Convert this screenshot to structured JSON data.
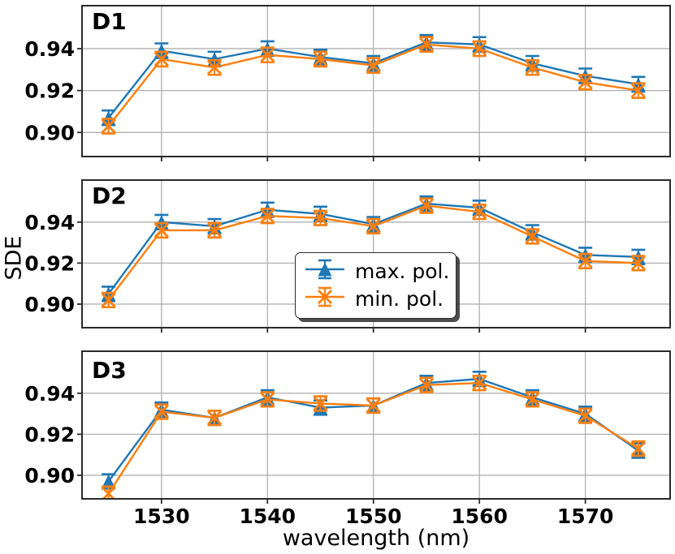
{
  "figure": {
    "xlabel": "wavelength (nm)",
    "ylabel": "SDE",
    "colors": {
      "max_pol": "#1f77b4",
      "min_pol": "#ff7f0e",
      "grid": "#b0b0b0",
      "spine": "#2a2a2a",
      "text": "#000000",
      "background": "#ffffff",
      "legend_shadow": "#2d2d2d"
    },
    "legend": {
      "shadow": true,
      "location": "center of D2 panel"
    }
  },
  "chart_data": [
    {
      "type": "line",
      "title": "D1",
      "x": [
        1525,
        1530,
        1535,
        1540,
        1545,
        1550,
        1555,
        1560,
        1565,
        1570,
        1575
      ],
      "series": [
        {
          "name": "max. pol.",
          "marker": "triangle-up",
          "color": "#1f77b4",
          "yerr": 0.0035,
          "values": [
            0.907,
            0.939,
            0.935,
            0.94,
            0.936,
            0.933,
            0.943,
            0.942,
            0.933,
            0.927,
            0.923
          ]
        },
        {
          "name": "min. pol.",
          "marker": "x",
          "color": "#ff7f0e",
          "yerr": 0.0035,
          "values": [
            0.903,
            0.935,
            0.931,
            0.937,
            0.935,
            0.932,
            0.942,
            0.94,
            0.931,
            0.924,
            0.92
          ]
        }
      ],
      "xlim": [
        1522.5,
        1578
      ],
      "ylim": [
        0.8885,
        0.9605
      ],
      "xticks": [
        1530,
        1540,
        1550,
        1560,
        1570
      ],
      "xticklabels": [
        "1530",
        "1540",
        "1550",
        "1560",
        "1570"
      ],
      "yticks": [
        0.9,
        0.92,
        0.94
      ],
      "yticklabels": [
        "0.90",
        "0.92",
        "0.94"
      ],
      "grid": true,
      "show_x_tick_labels": false
    },
    {
      "type": "line",
      "title": "D2",
      "x": [
        1525,
        1530,
        1535,
        1540,
        1545,
        1550,
        1555,
        1560,
        1565,
        1570,
        1575
      ],
      "series": [
        {
          "name": "max. pol.",
          "marker": "triangle-up",
          "color": "#1f77b4",
          "yerr": 0.0035,
          "values": [
            0.905,
            0.94,
            0.938,
            0.946,
            0.944,
            0.939,
            0.949,
            0.947,
            0.935,
            0.924,
            0.923
          ]
        },
        {
          "name": "min. pol.",
          "marker": "x",
          "color": "#ff7f0e",
          "yerr": 0.0035,
          "values": [
            0.902,
            0.936,
            0.936,
            0.943,
            0.942,
            0.938,
            0.948,
            0.945,
            0.933,
            0.921,
            0.92
          ]
        }
      ],
      "xlim": [
        1522.5,
        1578
      ],
      "ylim": [
        0.8885,
        0.9605
      ],
      "xticks": [
        1530,
        1540,
        1550,
        1560,
        1570
      ],
      "xticklabels": [
        "1530",
        "1540",
        "1550",
        "1560",
        "1570"
      ],
      "yticks": [
        0.9,
        0.92,
        0.94
      ],
      "yticklabels": [
        "0.90",
        "0.92",
        "0.94"
      ],
      "grid": true,
      "show_x_tick_labels": false
    },
    {
      "type": "line",
      "title": "D3",
      "x": [
        1525,
        1530,
        1535,
        1540,
        1545,
        1550,
        1555,
        1560,
        1565,
        1570,
        1575
      ],
      "series": [
        {
          "name": "max. pol.",
          "marker": "triangle-up",
          "color": "#1f77b4",
          "yerr": 0.0035,
          "values": [
            0.897,
            0.932,
            0.928,
            0.938,
            0.933,
            0.934,
            0.945,
            0.947,
            0.938,
            0.93,
            0.912
          ]
        },
        {
          "name": "min. pol.",
          "marker": "x",
          "color": "#ff7f0e",
          "yerr": 0.0035,
          "values": [
            0.891,
            0.931,
            0.928,
            0.937,
            0.935,
            0.934,
            0.944,
            0.945,
            0.937,
            0.929,
            0.913
          ]
        }
      ],
      "xlim": [
        1522.5,
        1578
      ],
      "ylim": [
        0.8885,
        0.9605
      ],
      "xticks": [
        1530,
        1540,
        1550,
        1560,
        1570
      ],
      "xticklabels": [
        "1530",
        "1540",
        "1550",
        "1560",
        "1570"
      ],
      "yticks": [
        0.9,
        0.92,
        0.94
      ],
      "yticklabels": [
        "0.90",
        "0.92",
        "0.94"
      ],
      "grid": true,
      "show_x_tick_labels": true
    }
  ]
}
